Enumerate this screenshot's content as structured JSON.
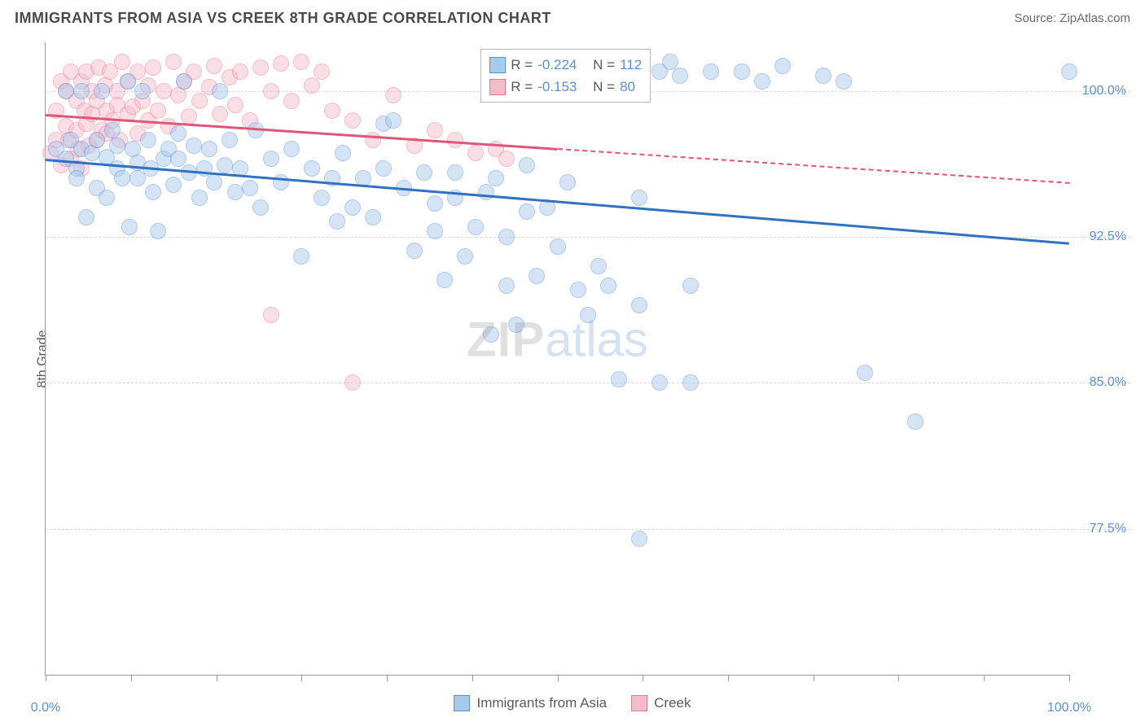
{
  "title": "IMMIGRANTS FROM ASIA VS CREEK 8TH GRADE CORRELATION CHART",
  "source": "Source: ZipAtlas.com",
  "watermark": {
    "part1": "ZIP",
    "part2": "atlas"
  },
  "chart": {
    "type": "scatter",
    "y_axis_title": "8th Grade",
    "background_color": "#ffffff",
    "grid_color": "#d8d8d8",
    "axis_color": "#9a9a9a",
    "xlim": [
      0,
      100
    ],
    "ylim": [
      70,
      102.5
    ],
    "x_ticks": [
      0,
      8.33,
      16.67,
      25,
      33.33,
      41.67,
      50,
      58.33,
      66.67,
      75,
      83.33,
      91.67,
      100
    ],
    "x_tick_labels": {
      "0": "0.0%",
      "100": "100.0%"
    },
    "y_grid": [
      77.5,
      85.0,
      92.5,
      100.0
    ],
    "y_tick_labels": {
      "77.5": "77.5%",
      "85.0": "85.0%",
      "92.5": "92.5%",
      "100.0": "100.0%"
    },
    "label_fontsize": 16,
    "label_color": "#5b8fd6",
    "marker_radius": 10,
    "marker_opacity": 0.48,
    "series": [
      {
        "name": "Immigrants from Asia",
        "color_fill": "#a8c8ec",
        "color_stroke": "#5b8fd6",
        "trend_color": "#2f72c4",
        "R": "-0.224",
        "N": "112",
        "trend": {
          "x1": 0,
          "y1": 96.5,
          "x2": 100,
          "y2": 92.2,
          "solid_until_x": 100
        },
        "points": [
          [
            1,
            97
          ],
          [
            2,
            96.5
          ],
          [
            2,
            100
          ],
          [
            2.5,
            97.5
          ],
          [
            3,
            96
          ],
          [
            3,
            95.5
          ],
          [
            3.5,
            100
          ],
          [
            3.5,
            97
          ],
          [
            4,
            93.5
          ],
          [
            4.5,
            96.8
          ],
          [
            5,
            95
          ],
          [
            5,
            97.5
          ],
          [
            5.5,
            100
          ],
          [
            6,
            96.6
          ],
          [
            6,
            94.5
          ],
          [
            6.5,
            98
          ],
          [
            7,
            97.2
          ],
          [
            7,
            96
          ],
          [
            7.5,
            95.5
          ],
          [
            8,
            100.5
          ],
          [
            8.2,
            93
          ],
          [
            8.5,
            97
          ],
          [
            9,
            96.3
          ],
          [
            9,
            95.5
          ],
          [
            9.5,
            100
          ],
          [
            10,
            97.5
          ],
          [
            10.3,
            96
          ],
          [
            10.5,
            94.8
          ],
          [
            11,
            92.8
          ],
          [
            11.5,
            96.5
          ],
          [
            12,
            97
          ],
          [
            12.5,
            95.2
          ],
          [
            13,
            97.8
          ],
          [
            13,
            96.5
          ],
          [
            13.5,
            100.5
          ],
          [
            14,
            95.8
          ],
          [
            14.5,
            97.2
          ],
          [
            15,
            94.5
          ],
          [
            15.5,
            96
          ],
          [
            16,
            97
          ],
          [
            16.5,
            95.3
          ],
          [
            17,
            100
          ],
          [
            17.5,
            96.2
          ],
          [
            18,
            97.5
          ],
          [
            18.5,
            94.8
          ],
          [
            19,
            96
          ],
          [
            20,
            95
          ],
          [
            20.5,
            98
          ],
          [
            21,
            94
          ],
          [
            22,
            96.5
          ],
          [
            23,
            95.3
          ],
          [
            24,
            97
          ],
          [
            25,
            91.5
          ],
          [
            26,
            96
          ],
          [
            27,
            94.5
          ],
          [
            28,
            95.5
          ],
          [
            28.5,
            93.3
          ],
          [
            29,
            96.8
          ],
          [
            30,
            94
          ],
          [
            31,
            95.5
          ],
          [
            32,
            93.5
          ],
          [
            33,
            96
          ],
          [
            33,
            98.3
          ],
          [
            34,
            98.5
          ],
          [
            35,
            95
          ],
          [
            36,
            91.8
          ],
          [
            37,
            95.8
          ],
          [
            38,
            94.2
          ],
          [
            38,
            92.8
          ],
          [
            39,
            90.3
          ],
          [
            40,
            94.5
          ],
          [
            40,
            95.8
          ],
          [
            41,
            91.5
          ],
          [
            42,
            93
          ],
          [
            43,
            94.8
          ],
          [
            43.5,
            87.5
          ],
          [
            44,
            95.5
          ],
          [
            45,
            90
          ],
          [
            45,
            92.5
          ],
          [
            46,
            88
          ],
          [
            47,
            93.8
          ],
          [
            47,
            96.2
          ],
          [
            48,
            90.5
          ],
          [
            49,
            94
          ],
          [
            50,
            92
          ],
          [
            51,
            95.3
          ],
          [
            52,
            89.8
          ],
          [
            53,
            88.5
          ],
          [
            54,
            91
          ],
          [
            55,
            90
          ],
          [
            56,
            85.2
          ],
          [
            58,
            94.5
          ],
          [
            58,
            89
          ],
          [
            60,
            85
          ],
          [
            60,
            101
          ],
          [
            61,
            101.5
          ],
          [
            62,
            100.8
          ],
          [
            63,
            85
          ],
          [
            63,
            90
          ],
          [
            65,
            101
          ],
          [
            68,
            101
          ],
          [
            70,
            100.5
          ],
          [
            72,
            101.3
          ],
          [
            76,
            100.8
          ],
          [
            78,
            100.5
          ],
          [
            80,
            85.5
          ],
          [
            85,
            83
          ],
          [
            58,
            77
          ],
          [
            100,
            101
          ]
        ]
      },
      {
        "name": "Creek",
        "color_fill": "#f4bcc9",
        "color_stroke": "#e47a96",
        "trend_color": "#e25578",
        "R": "-0.153",
        "N": "80",
        "trend": {
          "x1": 0,
          "y1": 98.8,
          "x2": 100,
          "y2": 95.3,
          "solid_until_x": 50
        },
        "points": [
          [
            0.5,
            96.8
          ],
          [
            1,
            97.5
          ],
          [
            1,
            99
          ],
          [
            1.5,
            100.5
          ],
          [
            1.5,
            96.2
          ],
          [
            2,
            98.2
          ],
          [
            2,
            100
          ],
          [
            2.2,
            97.5
          ],
          [
            2.5,
            101
          ],
          [
            2.5,
            96.5
          ],
          [
            3,
            99.5
          ],
          [
            3,
            98
          ],
          [
            3.2,
            97
          ],
          [
            3.5,
            100.5
          ],
          [
            3.5,
            96
          ],
          [
            3.8,
            99
          ],
          [
            4,
            98.3
          ],
          [
            4,
            101
          ],
          [
            4.2,
            97.2
          ],
          [
            4.5,
            100
          ],
          [
            4.5,
            98.8
          ],
          [
            5,
            99.5
          ],
          [
            5,
            97.5
          ],
          [
            5.2,
            101.2
          ],
          [
            5.5,
            98
          ],
          [
            5.8,
            100.3
          ],
          [
            6,
            99
          ],
          [
            6,
            97.8
          ],
          [
            6.3,
            101
          ],
          [
            6.5,
            98.5
          ],
          [
            7,
            100
          ],
          [
            7,
            99.3
          ],
          [
            7.2,
            97.5
          ],
          [
            7.5,
            101.5
          ],
          [
            8,
            98.8
          ],
          [
            8,
            100.5
          ],
          [
            8.5,
            99.2
          ],
          [
            9,
            97.8
          ],
          [
            9,
            101
          ],
          [
            9.5,
            99.5
          ],
          [
            10,
            100.3
          ],
          [
            10,
            98.5
          ],
          [
            10.5,
            101.2
          ],
          [
            11,
            99
          ],
          [
            11.5,
            100
          ],
          [
            12,
            98.2
          ],
          [
            12.5,
            101.5
          ],
          [
            13,
            99.8
          ],
          [
            13.5,
            100.5
          ],
          [
            14,
            98.7
          ],
          [
            14.5,
            101
          ],
          [
            15,
            99.5
          ],
          [
            16,
            100.2
          ],
          [
            16.5,
            101.3
          ],
          [
            17,
            98.8
          ],
          [
            18,
            100.7
          ],
          [
            18.5,
            99.3
          ],
          [
            19,
            101
          ],
          [
            20,
            98.5
          ],
          [
            21,
            101.2
          ],
          [
            22,
            100
          ],
          [
            23,
            101.4
          ],
          [
            24,
            99.5
          ],
          [
            25,
            101.5
          ],
          [
            26,
            100.3
          ],
          [
            27,
            101
          ],
          [
            28,
            99
          ],
          [
            30,
            98.5
          ],
          [
            32,
            97.5
          ],
          [
            34,
            99.8
          ],
          [
            36,
            97.2
          ],
          [
            38,
            98
          ],
          [
            40,
            97.5
          ],
          [
            42,
            96.8
          ],
          [
            44,
            97
          ],
          [
            45,
            96.5
          ],
          [
            22,
            88.5
          ],
          [
            30,
            85
          ]
        ]
      }
    ],
    "bottom_legend": [
      {
        "label": "Immigrants from Asia",
        "fill": "#a8c8ec",
        "stroke": "#5b8fd6"
      },
      {
        "label": "Creek",
        "fill": "#f4bcc9",
        "stroke": "#e47a96"
      }
    ]
  }
}
